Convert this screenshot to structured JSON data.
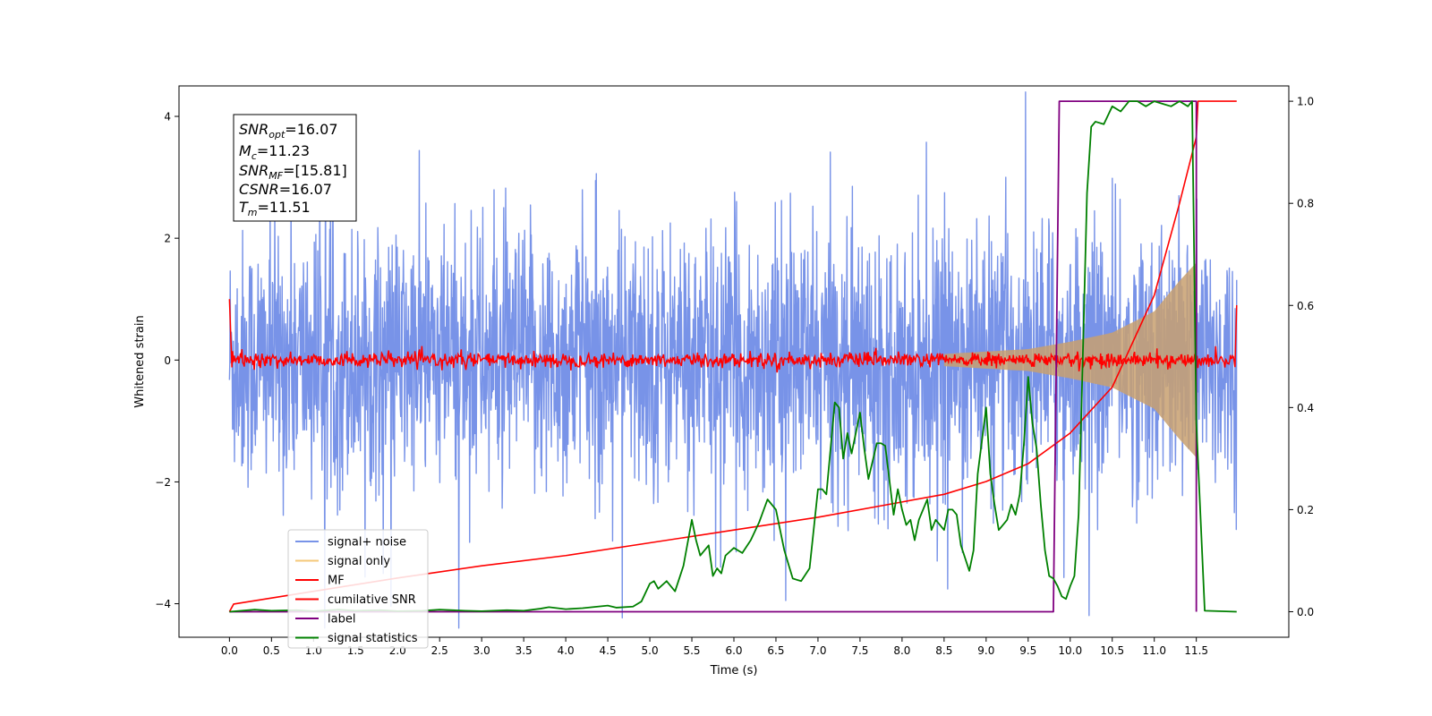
{
  "chart_data": {
    "type": "line",
    "xlabel": "Time (s)",
    "ylabel": "Whitened strain",
    "xlim": [
      -0.6,
      12.6
    ],
    "ylim_left": [
      -4.55,
      4.5
    ],
    "ylim_right": [
      -0.05,
      1.03
    ],
    "x_ticks": [
      "0.0",
      "0.5",
      "1.0",
      "1.5",
      "2.0",
      "2.5",
      "3.0",
      "3.5",
      "4.0",
      "4.5",
      "5.0",
      "5.5",
      "6.0",
      "6.5",
      "7.0",
      "7.5",
      "8.0",
      "8.5",
      "9.0",
      "9.5",
      "10.0",
      "10.5",
      "11.0",
      "11.5"
    ],
    "y_ticks_left": [
      "4",
      "2",
      "0",
      "−2",
      "−4"
    ],
    "y_ticks_right": [
      "1.0",
      "0.8",
      "0.6",
      "0.4",
      "0.2",
      "0.0"
    ],
    "annotation": {
      "snr_opt": {
        "main": "SNR",
        "sub": "opt",
        "value": "=16.07"
      },
      "mc": {
        "main": "M",
        "sub": "c",
        "value": "=11.23"
      },
      "snr_mf": {
        "main": "SNR",
        "sub": "MF",
        "value": "=[15.81]"
      },
      "csnr": {
        "main": "CSNR",
        "value": "=16.07"
      },
      "tm": {
        "main": "T",
        "sub": "m",
        "value": "=11.51"
      }
    },
    "legend": {
      "position": "lower-left",
      "entries": [
        {
          "label": "signal+ noise",
          "color": "#7893e8"
        },
        {
          "label": "signal only",
          "color": "#f5c878"
        },
        {
          "label": "MF",
          "color": "#ff0000"
        },
        {
          "label": "cumilative SNR",
          "color": "#ff0000"
        },
        {
          "label": "label",
          "color": "#800080"
        },
        {
          "label": "signal statistics",
          "color": "#008000"
        }
      ]
    },
    "series": [
      {
        "name": "signal+ noise",
        "axis": "left",
        "style": "noise band",
        "t_range": [
          0.0,
          11.98
        ],
        "envelope_approx": [
          -3.0,
          3.2
        ],
        "color": "#7893e8"
      },
      {
        "name": "signal only",
        "axis": "left",
        "style": "chirp envelope",
        "amplitude": {
          "t": [
            8.5,
            9.5,
            10.0,
            10.5,
            11.0,
            11.3,
            11.5
          ],
          "value": [
            0.1,
            0.18,
            0.3,
            0.45,
            0.8,
            1.3,
            1.6
          ]
        },
        "color": "#c8a070"
      },
      {
        "name": "MF",
        "axis": "left",
        "style": "noisy baseline",
        "baseline": 0.0,
        "jitter": 0.06,
        "start_value": 1.0,
        "end_value": 0.9,
        "color": "#ff0000"
      },
      {
        "name": "cumilative SNR",
        "axis": "right",
        "t": [
          0.0,
          0.05,
          1.0,
          2.0,
          3.0,
          4.0,
          5.0,
          6.0,
          7.0,
          8.0,
          8.5,
          9.0,
          9.5,
          10.0,
          10.5,
          11.0,
          11.3,
          11.5,
          11.52,
          11.98
        ],
        "values": [
          0.0,
          0.015,
          0.04,
          0.066,
          0.09,
          0.11,
          0.135,
          0.16,
          0.185,
          0.215,
          0.23,
          0.255,
          0.29,
          0.35,
          0.44,
          0.62,
          0.8,
          0.93,
          1.0,
          1.0
        ],
        "color": "#ff0000"
      },
      {
        "name": "label",
        "axis": "right",
        "t": [
          0.0,
          9.8,
          9.87,
          11.5,
          11.5
        ],
        "values": [
          0.0,
          0.0,
          1.0,
          1.0,
          0.0
        ],
        "color": "#800080"
      },
      {
        "name": "signal statistics",
        "axis": "right",
        "t": [
          0.0,
          0.3,
          0.5,
          0.8,
          1.0,
          1.3,
          1.5,
          1.8,
          2.0,
          2.3,
          2.5,
          2.8,
          3.0,
          3.3,
          3.5,
          3.7,
          3.8,
          4.0,
          4.2,
          4.5,
          4.6,
          4.8,
          4.9,
          5.0,
          5.05,
          5.1,
          5.2,
          5.3,
          5.4,
          5.5,
          5.55,
          5.6,
          5.7,
          5.75,
          5.8,
          5.85,
          5.9,
          6.0,
          6.1,
          6.2,
          6.3,
          6.4,
          6.5,
          6.6,
          6.7,
          6.8,
          6.9,
          7.0,
          7.05,
          7.1,
          7.2,
          7.25,
          7.3,
          7.35,
          7.4,
          7.5,
          7.55,
          7.6,
          7.7,
          7.75,
          7.8,
          7.9,
          7.95,
          8.0,
          8.05,
          8.1,
          8.15,
          8.2,
          8.3,
          8.35,
          8.4,
          8.5,
          8.55,
          8.6,
          8.65,
          8.7,
          8.8,
          8.85,
          8.9,
          9.0,
          9.05,
          9.1,
          9.15,
          9.2,
          9.25,
          9.3,
          9.35,
          9.4,
          9.45,
          9.5,
          9.55,
          9.6,
          9.65,
          9.7,
          9.75,
          9.8,
          9.85,
          9.9,
          9.95,
          10.0,
          10.05,
          10.1,
          10.15,
          10.2,
          10.25,
          10.3,
          10.4,
          10.5,
          10.6,
          10.7,
          10.8,
          10.9,
          11.0,
          11.1,
          11.2,
          11.3,
          11.4,
          11.45,
          11.5,
          11.6,
          11.98
        ],
        "values": [
          0.0,
          0.004,
          0.002,
          0.003,
          0.001,
          0.004,
          0.002,
          0.003,
          0.001,
          0.002,
          0.004,
          0.002,
          0.001,
          0.003,
          0.002,
          0.006,
          0.009,
          0.005,
          0.007,
          0.012,
          0.008,
          0.01,
          0.02,
          0.055,
          0.06,
          0.045,
          0.06,
          0.04,
          0.09,
          0.18,
          0.14,
          0.11,
          0.13,
          0.07,
          0.085,
          0.075,
          0.11,
          0.125,
          0.115,
          0.14,
          0.175,
          0.22,
          0.2,
          0.12,
          0.065,
          0.06,
          0.085,
          0.24,
          0.24,
          0.23,
          0.41,
          0.4,
          0.3,
          0.35,
          0.31,
          0.39,
          0.32,
          0.26,
          0.33,
          0.33,
          0.325,
          0.19,
          0.24,
          0.2,
          0.17,
          0.18,
          0.14,
          0.18,
          0.22,
          0.16,
          0.18,
          0.16,
          0.2,
          0.2,
          0.19,
          0.13,
          0.08,
          0.12,
          0.27,
          0.4,
          0.27,
          0.21,
          0.16,
          0.17,
          0.18,
          0.21,
          0.19,
          0.23,
          0.33,
          0.46,
          0.37,
          0.32,
          0.21,
          0.12,
          0.07,
          0.065,
          0.05,
          0.03,
          0.025,
          0.05,
          0.07,
          0.19,
          0.5,
          0.82,
          0.95,
          0.96,
          0.955,
          0.99,
          0.98,
          1.0,
          1.0,
          0.99,
          1.0,
          0.995,
          0.99,
          1.0,
          0.99,
          1.0,
          0.37,
          0.002,
          0.0
        ],
        "color": "#008000"
      }
    ]
  }
}
